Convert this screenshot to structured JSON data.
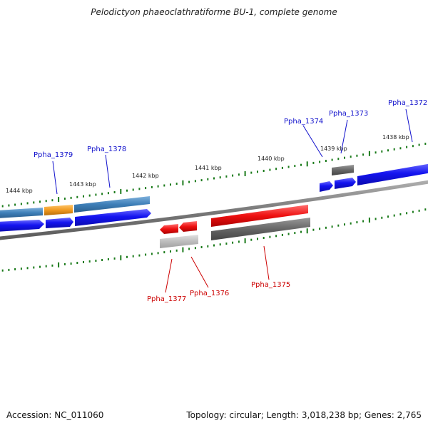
{
  "title": "Pelodictyon phaeoclathratiforme BU-1, complete genome",
  "footer": {
    "accession": "Accession: NC_011060",
    "summary": "Topology: circular; Length: 3,018,238 bp; Genes: 2,765"
  },
  "colors": {
    "backbone": "#8a8a8a",
    "tick": "#1a7a1a",
    "forward_gene": "#1010ee",
    "forward_cds_bar": "#3e7fb8",
    "forward_highlight": "#f09a20",
    "reverse_gene": "#ee1010",
    "reverse_cds_bar": "#666666",
    "reverse_pale_bar": "#bdbdbd",
    "label_forward": "#1010cc",
    "label_reverse": "#cc0000"
  },
  "kbp_labels": [
    "1444 kbp",
    "1443 kbp",
    "1442 kbp",
    "1441 kbp",
    "1440 kbp",
    "1439 kbp",
    "1438 kbp"
  ],
  "genes_forward": [
    "Ppha_1379",
    "Ppha_1378",
    "Ppha_1374",
    "Ppha_1373",
    "Ppha_1372"
  ],
  "genes_reverse": [
    "Ppha_1377",
    "Ppha_1376",
    "Ppha_1375"
  ]
}
